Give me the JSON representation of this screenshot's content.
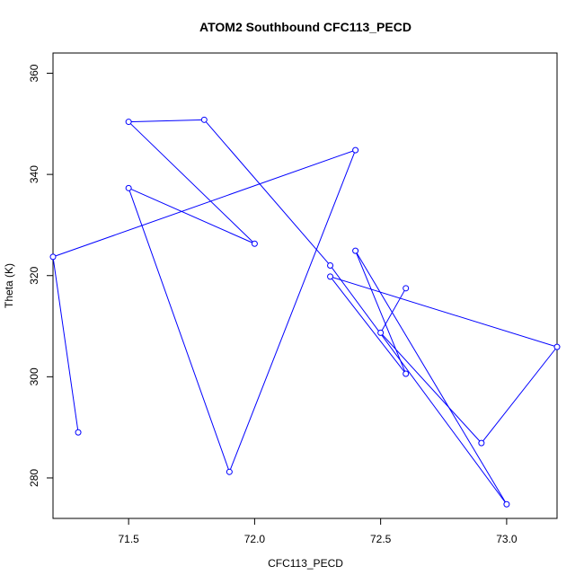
{
  "chart_data": {
    "type": "line",
    "title": "ATOM2 Southbound CFC113_PECD",
    "xlabel": "CFC113_PECD",
    "ylabel": "Theta (K)",
    "xlim": [
      71.2,
      73.2
    ],
    "ylim": [
      272,
      364
    ],
    "x_ticks": [
      71.5,
      72.0,
      72.5,
      73.0
    ],
    "x_tick_labels": [
      "71.5",
      "72.0",
      "72.5",
      "73.0"
    ],
    "y_ticks": [
      280,
      300,
      320,
      340,
      360
    ],
    "y_tick_labels": [
      "280",
      "300",
      "320",
      "340",
      "360"
    ],
    "grid": false,
    "series_color": "#0000ff",
    "points": [
      {
        "x": 71.3,
        "y": 289.0
      },
      {
        "x": 71.2,
        "y": 323.7
      },
      {
        "x": 72.4,
        "y": 344.8
      },
      {
        "x": 71.9,
        "y": 281.2
      },
      {
        "x": 71.5,
        "y": 337.3
      },
      {
        "x": 72.0,
        "y": 326.3
      },
      {
        "x": 71.5,
        "y": 350.4
      },
      {
        "x": 71.8,
        "y": 350.8
      },
      {
        "x": 72.3,
        "y": 322.0
      },
      {
        "x": 73.0,
        "y": 274.8
      },
      {
        "x": 72.4,
        "y": 324.9
      },
      {
        "x": 72.6,
        "y": 300.6
      },
      {
        "x": 72.3,
        "y": 319.8
      },
      {
        "x": 73.2,
        "y": 305.9
      },
      {
        "x": 72.9,
        "y": 286.9
      },
      {
        "x": 72.5,
        "y": 308.7
      },
      {
        "x": 72.6,
        "y": 317.5
      }
    ]
  }
}
